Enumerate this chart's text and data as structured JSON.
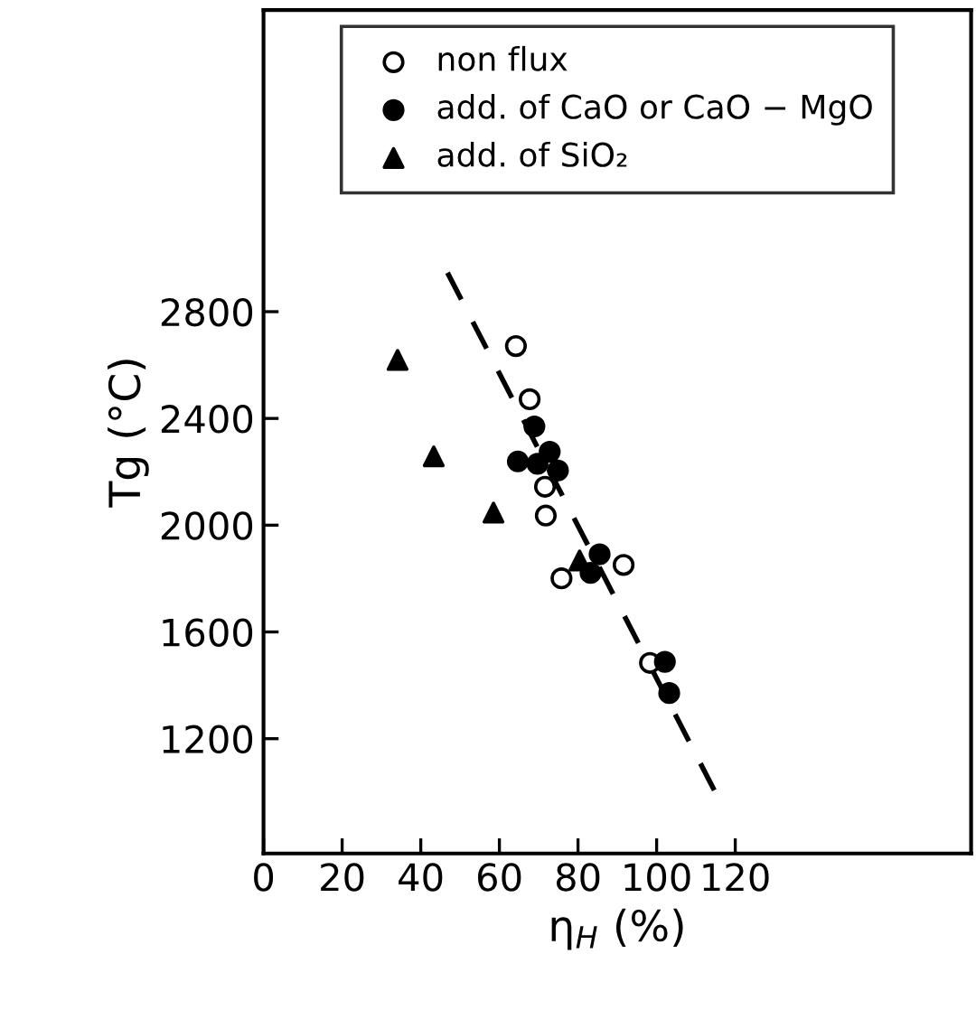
{
  "chart_data": {
    "type": "scatter",
    "xlabel": "η$_{H}$ (%)",
    "ylabel": "Tg (°C)",
    "xlim": [
      0,
      180
    ],
    "ylim": [
      770,
      3930
    ],
    "xticks": [
      0,
      20,
      40,
      60,
      80,
      100,
      120
    ],
    "yticks": [
      1200,
      1600,
      2000,
      2400,
      2800
    ],
    "grid": false,
    "legend": "top",
    "series": [
      {
        "name": "non flux",
        "color": "#000000",
        "marker": "open circle",
        "x": [
          64.2,
          67.7,
          71.6,
          71.8,
          75.8,
          91.6,
          98.3
        ],
        "values": [
          2671,
          2472,
          2144,
          2036,
          1801,
          1851,
          1484
        ]
      },
      {
        "name": "add. of CaO or CaO − MgO",
        "color": "#000000",
        "marker": "circle",
        "x": [
          68.9,
          64.7,
          69.7,
          72.8,
          74.9,
          85.5,
          83.2,
          102.1,
          103.2
        ],
        "values": [
          2370,
          2239,
          2230,
          2275,
          2205,
          1891,
          1821,
          1488,
          1371
        ]
      },
      {
        "name": "add. of SiO₂",
        "color": "#000000",
        "marker": "triangle",
        "x": [
          34.1,
          43.3,
          58.5,
          80.4
        ],
        "values": [
          2619,
          2258,
          2047,
          1868
        ]
      },
      {
        "type": "line",
        "color": "#000000",
        "line_style": "dashed",
        "marker": "none",
        "x": [
          46.8,
          115.6
        ],
        "values": [
          2946,
          980
        ]
      }
    ]
  }
}
